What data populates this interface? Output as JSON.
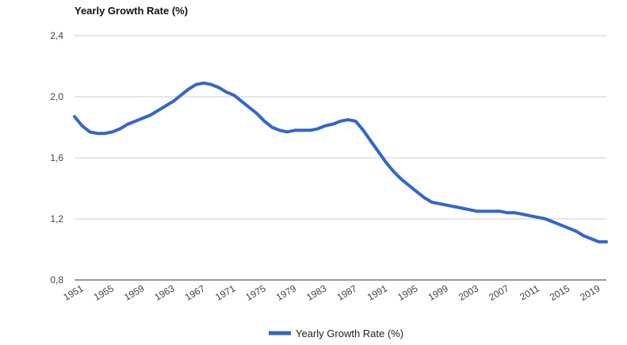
{
  "chart_data": {
    "type": "line",
    "title": "Yearly Growth Rate (%)",
    "xlabel": "",
    "ylabel": "",
    "ylim": [
      0.8,
      2.4
    ],
    "yticks": [
      0.8,
      1.2,
      1.6,
      2.0,
      2.4
    ],
    "ytick_labels": [
      "0,8",
      "1,2",
      "1,6",
      "2,0",
      "2,4"
    ],
    "xlim": [
      1951,
      2021
    ],
    "xticks": [
      1951,
      1955,
      1959,
      1963,
      1967,
      1971,
      1975,
      1979,
      1983,
      1987,
      1991,
      1995,
      1999,
      2003,
      2007,
      2011,
      2015,
      2019
    ],
    "xtick_labels": [
      "1951",
      "1955",
      "1959",
      "1963",
      "1967",
      "1971",
      "1975",
      "1979",
      "1983",
      "1987",
      "1991",
      "1995",
      "1999",
      "2003",
      "2007",
      "2011",
      "2015",
      "2019"
    ],
    "grid": true,
    "legend": "bottom",
    "series": [
      {
        "name": "Yearly Growth Rate (%)",
        "color": "#3366cc",
        "x": [
          1951,
          1952,
          1953,
          1954,
          1955,
          1956,
          1957,
          1958,
          1959,
          1960,
          1961,
          1962,
          1963,
          1964,
          1965,
          1966,
          1967,
          1968,
          1969,
          1970,
          1971,
          1972,
          1973,
          1974,
          1975,
          1976,
          1977,
          1978,
          1979,
          1980,
          1981,
          1982,
          1983,
          1984,
          1985,
          1986,
          1987,
          1988,
          1989,
          1990,
          1991,
          1992,
          1993,
          1994,
          1995,
          1996,
          1997,
          1998,
          1999,
          2000,
          2001,
          2002,
          2003,
          2004,
          2005,
          2006,
          2007,
          2008,
          2009,
          2010,
          2011,
          2012,
          2013,
          2014,
          2015,
          2016,
          2017,
          2018,
          2019,
          2020,
          2021
        ],
        "y": [
          1.87,
          1.81,
          1.77,
          1.76,
          1.76,
          1.77,
          1.79,
          1.82,
          1.84,
          1.86,
          1.88,
          1.91,
          1.94,
          1.97,
          2.01,
          2.05,
          2.08,
          2.09,
          2.08,
          2.06,
          2.03,
          2.01,
          1.97,
          1.93,
          1.89,
          1.84,
          1.8,
          1.78,
          1.77,
          1.78,
          1.78,
          1.78,
          1.79,
          1.81,
          1.82,
          1.84,
          1.85,
          1.84,
          1.78,
          1.71,
          1.64,
          1.57,
          1.51,
          1.46,
          1.42,
          1.38,
          1.34,
          1.31,
          1.3,
          1.29,
          1.28,
          1.27,
          1.26,
          1.25,
          1.25,
          1.25,
          1.25,
          1.24,
          1.24,
          1.23,
          1.22,
          1.21,
          1.2,
          1.18,
          1.16,
          1.14,
          1.12,
          1.09,
          1.07,
          1.05,
          1.05
        ]
      }
    ]
  }
}
